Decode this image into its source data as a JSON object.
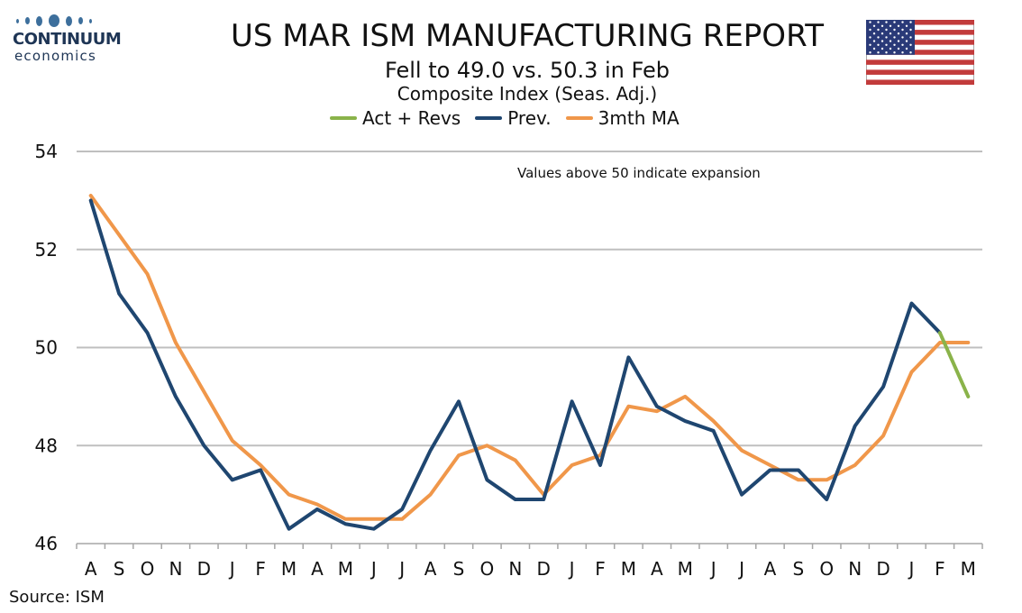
{
  "logo": {
    "brand_line1": "CONTINUUM",
    "brand_line2": "economics"
  },
  "header": {
    "title": "US MAR ISM MANUFACTURING REPORT",
    "subtitle": "Fell to 49.0 vs. 50.3 in Feb",
    "subtitle2": "Composite Index (Seas. Adj.)"
  },
  "source": "Source: ISM",
  "colors": {
    "act": "#8ab34a",
    "prev": "#1f4670",
    "ma": "#f0974a",
    "grid": "#bfbfbf"
  },
  "chart_data": {
    "type": "line",
    "title": "US MAR ISM MANUFACTURING REPORT",
    "subtitle": "Fell to 49.0 vs. 50.3 in Feb",
    "ylabel": "",
    "xlabel": "",
    "categories": [
      "A",
      "S",
      "O",
      "N",
      "D",
      "J",
      "F",
      "M",
      "A",
      "M",
      "J",
      "J",
      "A",
      "S",
      "O",
      "N",
      "D",
      "J",
      "F",
      "M",
      "A",
      "M",
      "J",
      "J",
      "A",
      "S",
      "O",
      "N",
      "D",
      "J",
      "F",
      "M"
    ],
    "ylim": [
      46,
      54
    ],
    "yticks": [
      46,
      48,
      50,
      52,
      54
    ],
    "grid": true,
    "legend_position": "top",
    "annotation": "Values above 50 indicate expansion",
    "series": [
      {
        "name": "Act + Revs",
        "color": "#8ab34a",
        "values": [
          null,
          null,
          null,
          null,
          null,
          null,
          null,
          null,
          null,
          null,
          null,
          null,
          null,
          null,
          null,
          null,
          null,
          null,
          null,
          null,
          null,
          null,
          null,
          null,
          null,
          null,
          null,
          null,
          null,
          null,
          50.3,
          49.0
        ]
      },
      {
        "name": "Prev.",
        "color": "#1f4670",
        "values": [
          53.0,
          51.1,
          50.3,
          49.0,
          48.0,
          47.3,
          47.5,
          46.3,
          46.7,
          46.4,
          46.3,
          46.7,
          47.9,
          48.9,
          47.3,
          46.9,
          46.9,
          48.9,
          47.6,
          49.8,
          48.8,
          48.5,
          48.3,
          47.0,
          47.5,
          47.5,
          46.9,
          48.4,
          49.2,
          50.9,
          50.3,
          null
        ]
      },
      {
        "name": "3mth MA",
        "color": "#f0974a",
        "values": [
          53.1,
          52.3,
          51.5,
          50.1,
          49.1,
          48.1,
          47.6,
          47.0,
          46.8,
          46.5,
          46.5,
          46.5,
          47.0,
          47.8,
          48.0,
          47.7,
          47.0,
          47.6,
          47.8,
          48.8,
          48.7,
          49.0,
          48.5,
          47.9,
          47.6,
          47.3,
          47.3,
          47.6,
          48.2,
          49.5,
          50.1,
          50.1
        ]
      }
    ]
  }
}
